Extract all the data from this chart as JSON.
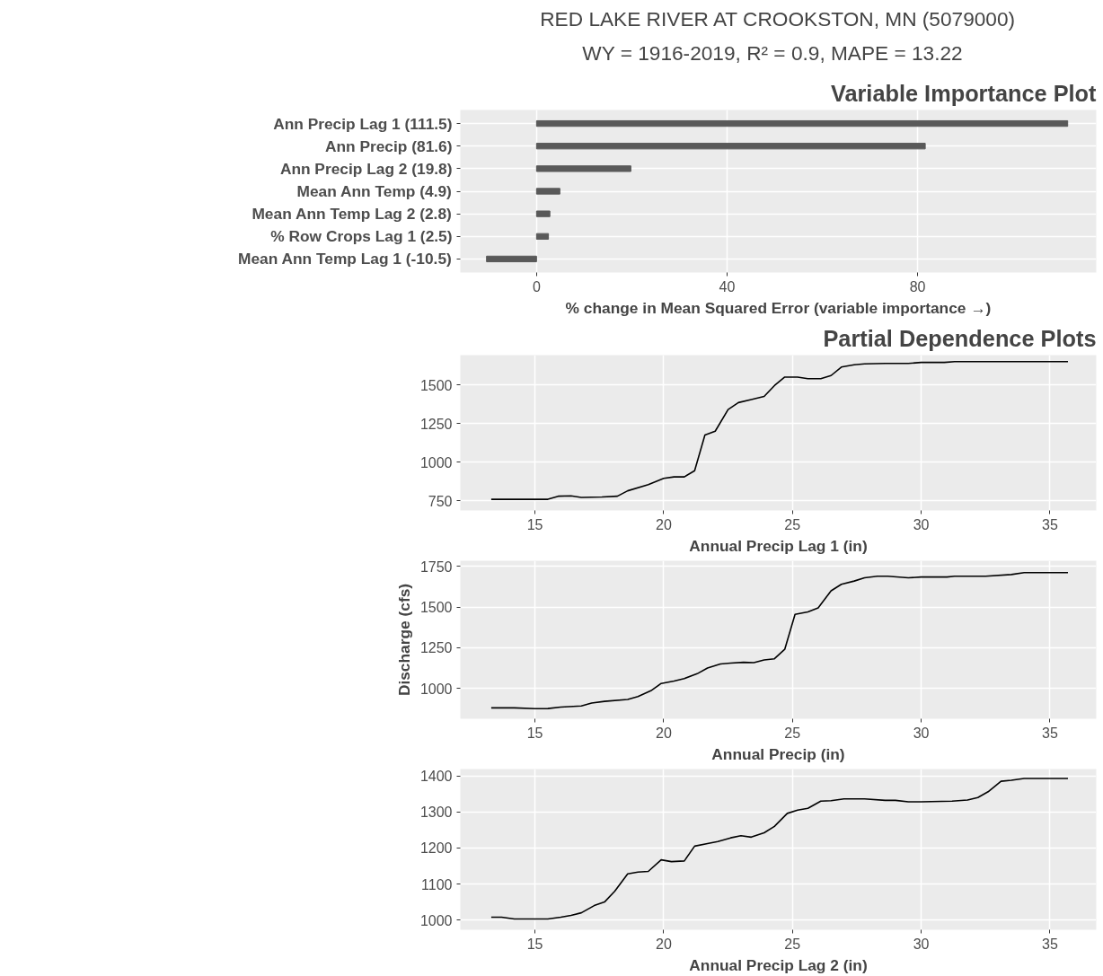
{
  "chart_data": [
    {
      "type": "other",
      "title": "RED LAKE RIVER AT CROOKSTON, MN (5079000)",
      "subtitle": "WY = 1916-2019,  R² = 0.9,  MAPE = 13.22"
    },
    {
      "type": "bar",
      "orientation": "horizontal",
      "title": "Variable Importance Plot",
      "xlabel": "% change in Mean Squared Error (variable importance →)",
      "categories": [
        "Ann Precip Lag 1 (111.5)",
        "Ann Precip (81.6)",
        "Ann Precip Lag 2 (19.8)",
        "Mean Ann Temp (4.9)",
        "Mean Ann Temp Lag 2 (2.8)",
        "% Row Crops Lag 1 (2.5)",
        "Mean Ann Temp Lag 1 (-10.5)"
      ],
      "values": [
        111.5,
        81.6,
        19.8,
        4.9,
        2.8,
        2.5,
        -10.5
      ],
      "color": "#595959",
      "xlim": [
        -16,
        117.5
      ],
      "xticks": [
        0,
        40,
        80
      ],
      "grid": true
    },
    {
      "type": "line",
      "title": "Partial Dependence Plots",
      "xlabel": "Annual Precip Lag 1 (in)",
      "x": [
        13.3,
        15.5,
        15.9,
        16.4,
        16.8,
        17.6,
        18.2,
        18.6,
        19.4,
        20.0,
        20.4,
        20.8,
        21.2,
        21.6,
        22.0,
        22.5,
        22.9,
        23.4,
        23.9,
        24.3,
        24.7,
        25.2,
        25.6,
        26.1,
        26.5,
        26.9,
        27.4,
        27.8,
        28.6,
        29.5,
        30.0,
        30.9,
        31.3,
        35.7
      ],
      "values": [
        760,
        760,
        780,
        782,
        772,
        775,
        780,
        815,
        855,
        895,
        905,
        905,
        945,
        1175,
        1200,
        1340,
        1385,
        1405,
        1425,
        1495,
        1550,
        1550,
        1540,
        1540,
        1560,
        1615,
        1630,
        1635,
        1638,
        1638,
        1645,
        1645,
        1650,
        1650
      ],
      "color": "#000000",
      "xlim": [
        12.1,
        36.8
      ],
      "ylim": [
        688,
        1692
      ],
      "xticks": [
        15,
        20,
        25,
        30,
        35
      ],
      "yticks": [
        750,
        1000,
        1250,
        1500
      ],
      "grid": true
    },
    {
      "type": "line",
      "xlabel": "Annual Precip (in)",
      "ylabel": "Discharge (cfs)",
      "x": [
        13.3,
        14.2,
        15.0,
        15.5,
        16.0,
        16.8,
        17.2,
        17.7,
        18.6,
        19.0,
        19.5,
        19.9,
        20.4,
        20.8,
        21.3,
        21.7,
        22.2,
        22.6,
        23.1,
        23.5,
        23.9,
        24.3,
        24.7,
        25.1,
        25.6,
        26.0,
        26.5,
        26.9,
        27.4,
        27.8,
        28.3,
        28.7,
        29.5,
        30.0,
        31.0,
        31.3,
        32.5,
        33.5,
        34.0,
        35.7
      ],
      "values": [
        880,
        880,
        875,
        876,
        885,
        892,
        910,
        920,
        932,
        950,
        985,
        1030,
        1045,
        1060,
        1090,
        1125,
        1150,
        1155,
        1160,
        1158,
        1175,
        1182,
        1240,
        1455,
        1470,
        1495,
        1600,
        1640,
        1660,
        1680,
        1690,
        1690,
        1680,
        1685,
        1685,
        1690,
        1690,
        1700,
        1712,
        1712
      ],
      "color": "#000000",
      "xlim": [
        12.1,
        36.8
      ],
      "ylim": [
        813,
        1785
      ],
      "xticks": [
        15,
        20,
        25,
        30,
        35
      ],
      "yticks": [
        1000,
        1250,
        1500,
        1750
      ],
      "grid": true
    },
    {
      "type": "line",
      "xlabel": "Annual Precip Lag 2 (in)",
      "x": [
        13.3,
        13.7,
        14.2,
        15.5,
        16.0,
        16.4,
        16.8,
        17.3,
        17.7,
        18.1,
        18.6,
        19.0,
        19.4,
        19.9,
        20.3,
        20.8,
        21.2,
        21.7,
        22.1,
        22.6,
        23.0,
        23.4,
        23.9,
        24.3,
        24.8,
        25.2,
        25.6,
        26.1,
        26.5,
        27.0,
        27.8,
        28.6,
        29.0,
        29.5,
        30.0,
        31.2,
        31.8,
        32.2,
        32.6,
        33.1,
        33.5,
        34.0,
        35.7
      ],
      "values": [
        1008,
        1008,
        1003,
        1003,
        1008,
        1013,
        1020,
        1040,
        1050,
        1080,
        1128,
        1133,
        1135,
        1167,
        1162,
        1164,
        1205,
        1212,
        1218,
        1228,
        1234,
        1230,
        1242,
        1260,
        1296,
        1305,
        1310,
        1330,
        1331,
        1336,
        1336,
        1332,
        1332,
        1328,
        1328,
        1330,
        1333,
        1340,
        1356,
        1385,
        1388,
        1393,
        1393
      ],
      "color": "#000000",
      "xlim": [
        12.1,
        36.8
      ],
      "ylim": [
        973,
        1419
      ],
      "xticks": [
        15,
        20,
        25,
        30,
        35
      ],
      "yticks": [
        1000,
        1100,
        1200,
        1300,
        1400
      ],
      "grid": true
    }
  ]
}
